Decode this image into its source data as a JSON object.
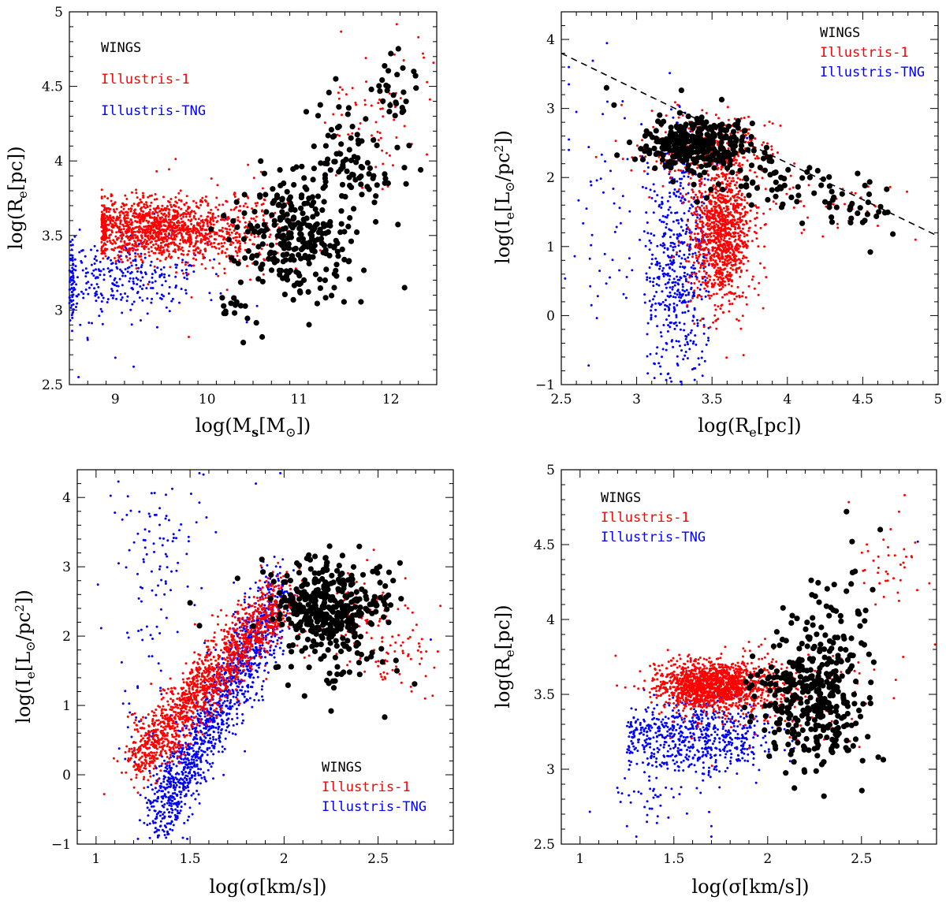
{
  "colors": {
    "WINGS": "#000000",
    "Illustris-1": "#ff0000",
    "Illustris-TNG": "#0000ff"
  },
  "chart_data": [
    {
      "type": "scatter",
      "xlabel": "log(M_s[M_⊙])",
      "ylabel": "log(R_e[pc])",
      "xlim": [
        8.5,
        12.5
      ],
      "ylim": [
        2.5,
        5
      ],
      "xticks": [
        9,
        10,
        11,
        12
      ],
      "yticks": [
        2.5,
        3,
        3.5,
        4,
        4.5,
        5
      ],
      "xticklabels": [
        "9",
        "10",
        "11",
        "12"
      ],
      "yticklabels": [
        "2.5",
        "3",
        "3.5",
        "4",
        "4.5",
        "5"
      ],
      "legend": {
        "position": "top-left",
        "entries": [
          "WINGS",
          "Illustris-1",
          "Illustris-TNG"
        ]
      },
      "series": [
        {
          "name": "WINGS",
          "color": "#000000",
          "clouds": [
            {
              "n": 280,
              "cx": 10.95,
              "cy": 3.48,
              "sx": 0.32,
              "sy": 0.2
            },
            {
              "n": 90,
              "cx": 11.6,
              "cy": 4.0,
              "sx": 0.3,
              "sy": 0.2
            },
            {
              "n": 25,
              "cx": 12.1,
              "cy": 4.45,
              "sx": 0.15,
              "sy": 0.12
            },
            {
              "n": 15,
              "cx": 10.3,
              "cy": 3.0,
              "sx": 0.1,
              "sy": 0.08
            }
          ],
          "points": [
            [
              12.15,
              3.15
            ],
            [
              10.6,
              2.82
            ],
            [
              12.0,
              4.72
            ],
            [
              11.4,
              4.55
            ],
            [
              12.25,
              4.6
            ]
          ]
        },
        {
          "name": "Illustris-1",
          "color": "#ff0000",
          "clouds": [
            {
              "n": 1200,
              "cx": 9.4,
              "cy": 3.55,
              "sx": 0.42,
              "sy": 0.1,
              "xmin": 8.85
            },
            {
              "n": 250,
              "cx": 10.3,
              "cy": 3.52,
              "sx": 0.3,
              "sy": 0.15
            },
            {
              "n": 70,
              "cx": 11.9,
              "cy": 4.3,
              "sx": 0.3,
              "sy": 0.22
            }
          ],
          "points": [
            [
              12.3,
              4.83
            ],
            [
              12.35,
              4.72
            ],
            [
              9.45,
              3.93
            ],
            [
              9.8,
              2.82
            ]
          ]
        },
        {
          "name": "Illustris-TNG",
          "color": "#0000ff",
          "clouds": [
            {
              "n": 340,
              "cx": 9.0,
              "cy": 3.22,
              "sx": 0.48,
              "sy": 0.14,
              "xmin": 8.5
            }
          ],
          "points": [
            [
              8.6,
              2.55
            ],
            [
              9.2,
              2.62
            ],
            [
              9.0,
              2.68
            ],
            [
              8.7,
              2.8
            ],
            [
              10.4,
              3.35
            ]
          ]
        }
      ]
    },
    {
      "type": "scatter",
      "xlabel": "log(R_e[pc])",
      "ylabel": "log(I_e[L_⊙/pc²])",
      "xlim": [
        2.5,
        5
      ],
      "ylim": [
        -1,
        4.4
      ],
      "xticks": [
        2.5,
        3,
        3.5,
        4,
        4.5,
        5
      ],
      "yticks": [
        -1,
        0,
        1,
        2,
        3,
        4
      ],
      "xticklabels": [
        "2.5",
        "3",
        "3.5",
        "4",
        "4.5",
        "5"
      ],
      "yticklabels": [
        "−1",
        "0",
        "1",
        "2",
        "3",
        "4"
      ],
      "reference_line": {
        "style": "dashed",
        "x": [
          2.5,
          5
        ],
        "y": [
          3.8,
          1.15
        ]
      },
      "legend": {
        "position": "top-right",
        "entries": [
          "WINGS",
          "Illustris-1",
          "Illustris-TNG"
        ]
      },
      "series": [
        {
          "name": "WINGS",
          "color": "#000000",
          "clouds": [
            {
              "n": 300,
              "cx": 3.4,
              "cy": 2.48,
              "sx": 0.18,
              "sy": 0.2
            },
            {
              "n": 60,
              "cx": 3.95,
              "cy": 1.95,
              "sx": 0.25,
              "sy": 0.18
            },
            {
              "n": 25,
              "cx": 4.4,
              "cy": 1.5,
              "sx": 0.15,
              "sy": 0.15
            }
          ],
          "points": [
            [
              2.8,
              3.3
            ],
            [
              2.85,
              3.05
            ],
            [
              4.55,
              0.92
            ],
            [
              4.7,
              1.18
            ],
            [
              4.5,
              1.35
            ]
          ]
        },
        {
          "name": "Illustris-1",
          "color": "#ff0000",
          "clouds": [
            {
              "n": 1100,
              "cx": 3.57,
              "cy": 1.2,
              "sx": 0.1,
              "sy": 0.55
            },
            {
              "n": 300,
              "cx": 3.45,
              "cy": 2.4,
              "sx": 0.22,
              "sy": 0.25
            },
            {
              "n": 40,
              "cx": 4.3,
              "cy": 1.6,
              "sx": 0.25,
              "sy": 0.2
            }
          ],
          "points": [
            [
              4.85,
              1.1
            ],
            [
              4.6,
              1.3
            ],
            [
              2.9,
              3.05
            ]
          ]
        },
        {
          "name": "Illustris-TNG",
          "color": "#0000ff",
          "clouds": [
            {
              "n": 550,
              "cx": 3.28,
              "cy": 0.7,
              "sx": 0.12,
              "sy": 0.9,
              "xmin": 3.05,
              "xmax": 3.48
            },
            {
              "n": 60,
              "cx": 2.85,
              "cy": 1.4,
              "sx": 0.15,
              "sy": 0.9
            },
            {
              "n": 30,
              "cx": 3.5,
              "cy": 2.5,
              "sx": 0.15,
              "sy": 0.3
            }
          ],
          "points": [
            [
              2.55,
              3.6
            ],
            [
              2.55,
              3.35
            ],
            [
              2.55,
              2.55
            ],
            [
              2.6,
              2.95
            ],
            [
              2.7,
              0.15
            ],
            [
              2.55,
              2.4
            ]
          ]
        }
      ]
    },
    {
      "type": "scatter",
      "xlabel": "log(σ[km/s])",
      "ylabel": "log(I_e[L_⊙/pc²])",
      "xlim": [
        0.9,
        2.9
      ],
      "ylim": [
        -1,
        4.4
      ],
      "xticks": [
        1,
        1.5,
        2,
        2.5
      ],
      "yticks": [
        -1,
        0,
        1,
        2,
        3,
        4
      ],
      "xticklabels": [
        "1",
        "1.5",
        "2",
        "2.5"
      ],
      "yticklabels": [
        "−1",
        "0",
        "1",
        "2",
        "3",
        "4"
      ],
      "legend": {
        "position": "bottom-right",
        "entries": [
          "WINGS",
          "Illustris-1",
          "Illustris-TNG"
        ]
      },
      "series": [
        {
          "name": "WINGS",
          "color": "#000000",
          "clouds": [
            {
              "n": 350,
              "cx": 2.22,
              "cy": 2.45,
              "sx": 0.14,
              "sy": 0.3
            },
            {
              "n": 40,
              "cx": 2.3,
              "cy": 1.6,
              "sx": 0.15,
              "sy": 0.25
            }
          ],
          "points": [
            [
              2.25,
              0.92
            ],
            [
              2.58,
              2.8
            ],
            [
              2.6,
              1.5
            ],
            [
              1.5,
              2.48
            ],
            [
              1.55,
              2.15
            ]
          ]
        },
        {
          "name": "Illustris-1",
          "color": "#ff0000",
          "trend": {
            "n": 1500,
            "x0": 1.22,
            "x1": 2.0,
            "y0": 0.2,
            "y1": 2.6,
            "sx": 0.05,
            "sy": 0.22
          },
          "clouds": [
            {
              "n": 120,
              "cx": 2.35,
              "cy": 2.2,
              "sx": 0.2,
              "sy": 0.35
            },
            {
              "n": 40,
              "cx": 2.6,
              "cy": 1.7,
              "sx": 0.1,
              "sy": 0.25
            }
          ],
          "points": [
            [
              2.75,
              1.1
            ],
            [
              2.7,
              1.3
            ]
          ]
        },
        {
          "name": "Illustris-TNG",
          "color": "#0000ff",
          "trend": {
            "n": 1300,
            "x0": 1.33,
            "x1": 1.98,
            "y0": -0.6,
            "y1": 2.6,
            "sx": 0.05,
            "sy": 0.28
          },
          "clouds": [
            {
              "n": 90,
              "cx": 1.33,
              "cy": 3.35,
              "sx": 0.12,
              "sy": 0.55
            },
            {
              "n": 50,
              "cx": 1.25,
              "cy": 1.0,
              "sx": 0.1,
              "sy": 0.8
            }
          ],
          "points": [
            [
              1.1,
              3.78
            ],
            [
              1.55,
              4.35
            ],
            [
              1.85,
              4.2
            ],
            [
              1.98,
              4.35
            ],
            [
              2.78,
              1.95
            ],
            [
              1.12,
              3.05
            ]
          ]
        }
      ]
    },
    {
      "type": "scatter",
      "xlabel": "log(σ[km/s])",
      "ylabel": "log(R_e[pc])",
      "xlim": [
        0.9,
        2.9
      ],
      "ylim": [
        2.5,
        5
      ],
      "xticks": [
        1,
        1.5,
        2,
        2.5
      ],
      "yticks": [
        2.5,
        3,
        3.5,
        4,
        4.5,
        5
      ],
      "xticklabels": [
        "1",
        "1.5",
        "2",
        "2.5"
      ],
      "yticklabels": [
        "2.5",
        "3",
        "3.5",
        "4",
        "4.5",
        "5"
      ],
      "legend": {
        "position": "top-left",
        "entries": [
          "WINGS",
          "Illustris-1",
          "Illustris-TNG"
        ]
      },
      "series": [
        {
          "name": "WINGS",
          "color": "#000000",
          "clouds": [
            {
              "n": 340,
              "cx": 2.22,
              "cy": 3.45,
              "sx": 0.15,
              "sy": 0.2
            },
            {
              "n": 60,
              "cx": 2.35,
              "cy": 3.95,
              "sx": 0.1,
              "sy": 0.2
            }
          ],
          "points": [
            [
              2.42,
              4.72
            ],
            [
              2.3,
              2.82
            ],
            [
              2.45,
              4.52
            ],
            [
              2.6,
              4.6
            ],
            [
              2.55,
              3.58
            ]
          ]
        },
        {
          "name": "Illustris-1",
          "color": "#ff0000",
          "clouds": [
            {
              "n": 1400,
              "cx": 1.7,
              "cy": 3.56,
              "sx": 0.15,
              "sy": 0.08
            },
            {
              "n": 200,
              "cx": 2.0,
              "cy": 3.5,
              "sx": 0.25,
              "sy": 0.15
            },
            {
              "n": 40,
              "cx": 2.65,
              "cy": 4.3,
              "sx": 0.1,
              "sy": 0.2
            }
          ],
          "points": [
            [
              2.73,
              4.83
            ],
            [
              2.7,
              4.72
            ],
            [
              1.9,
              3.85
            ]
          ]
        },
        {
          "name": "Illustris-TNG",
          "color": "#0000ff",
          "clouds": [
            {
              "n": 650,
              "cx": 1.6,
              "cy": 3.22,
              "sx": 0.2,
              "sy": 0.12,
              "xmin": 1.25
            },
            {
              "n": 40,
              "cx": 1.4,
              "cy": 2.8,
              "sx": 0.15,
              "sy": 0.12
            }
          ],
          "points": [
            [
              1.25,
              2.62
            ],
            [
              1.3,
              2.55
            ],
            [
              1.7,
              2.55
            ],
            [
              2.8,
              4.52
            ],
            [
              1.7,
              2.62
            ]
          ]
        }
      ]
    }
  ]
}
